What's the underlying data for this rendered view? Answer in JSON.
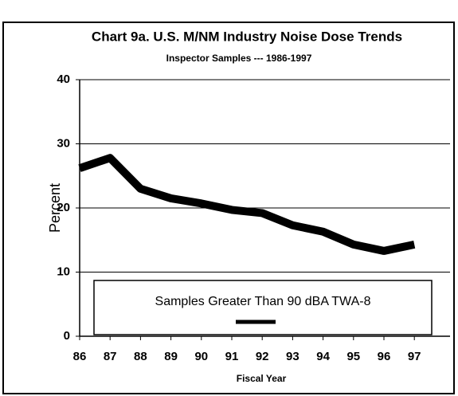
{
  "chart_data": {
    "type": "line",
    "title": "Chart 9a.  U.S. M/NM Industry Noise Dose Trends",
    "subtitle": "Inspector Samples --- 1986-1997",
    "x_label": "Fiscal Year",
    "y_label": "Percent",
    "categories": [
      "86",
      "87",
      "88",
      "89",
      "90",
      "91",
      "92",
      "93",
      "94",
      "95",
      "96",
      "97"
    ],
    "series": [
      {
        "name": "Samples Greater Than 90 dBA TWA-8",
        "color": "#000000",
        "values": [
          26.2,
          27.8,
          23,
          21.5,
          20.7,
          19.7,
          19.2,
          17.3,
          16.3,
          14.3,
          13.3,
          14.3
        ]
      }
    ],
    "ylim": [
      0,
      40
    ],
    "yticks": [
      0,
      10,
      20,
      30,
      40
    ],
    "grid": true
  }
}
